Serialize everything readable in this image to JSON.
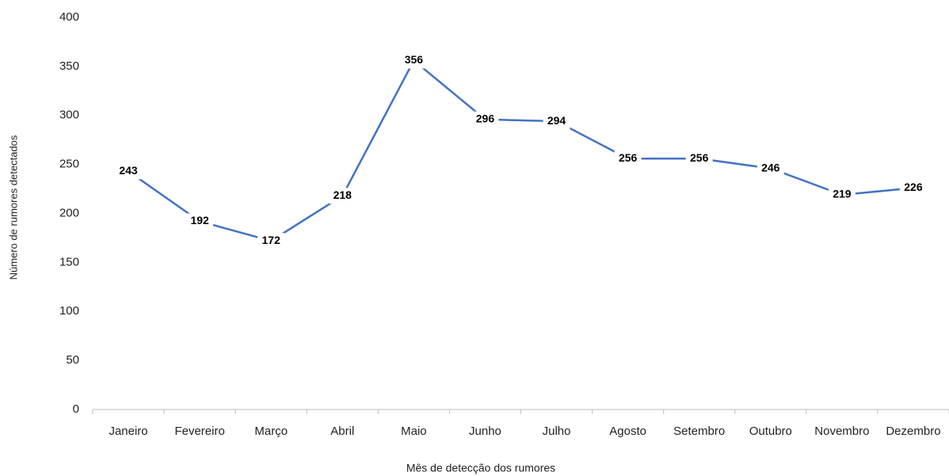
{
  "chart_data": {
    "type": "line",
    "x_label": "Mês de detecção dos rumores",
    "y_label": "Número de rumores detectados",
    "categories": [
      "Janeiro",
      "Fevereiro",
      "Março",
      "Abril",
      "Maio",
      "Junho",
      "Julho",
      "Agosto",
      "Setembro",
      "Outubro",
      "Novembro",
      "Dezembro"
    ],
    "values": [
      243,
      192,
      172,
      218,
      356,
      296,
      294,
      256,
      256,
      246,
      219,
      226
    ],
    "color": "#4472c4",
    "ylim": [
      0,
      400
    ],
    "yticks": [
      0,
      50,
      100,
      150,
      200,
      250,
      300,
      350,
      400
    ],
    "grid": false
  }
}
